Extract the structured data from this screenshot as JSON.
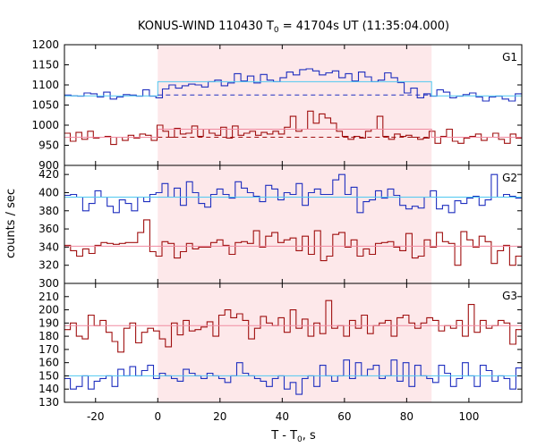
{
  "chart_data": {
    "type": "line",
    "title": "KONUS-WIND 110430 T",
    "title_sub": "0",
    "title_rest": " = 41704s UT (11:35:04.000)",
    "xlabel": "T - T",
    "xlabel_sub": "0",
    "xlabel_rest": ", s",
    "ylabel": "counts / sec",
    "xlim": [
      -30,
      117
    ],
    "x_ticks": [
      -20,
      0,
      20,
      40,
      60,
      80,
      100
    ],
    "shaded_interval": [
      0,
      88
    ],
    "colors": {
      "blue": "#1f2fbf",
      "red": "#a01010",
      "light_blue": "#4fc8f0",
      "pink": "#f08aa0",
      "shade": "#fde8ea"
    },
    "panels": [
      {
        "label": "G1",
        "ylim": [
          900,
          1200
        ],
        "y_ticks": [
          900,
          950,
          1000,
          1050,
          1100,
          1150,
          1200
        ],
        "series": [
          {
            "color": "blue",
            "values": [
              1075,
              1073,
              1072,
              1080,
              1078,
              1070,
              1082,
              1065,
              1070,
              1076,
              1075,
              1072,
              1088,
              1072,
              1068,
              1090,
              1100,
              1092,
              1098,
              1102,
              1100,
              1095,
              1108,
              1112,
              1098,
              1105,
              1128,
              1110,
              1122,
              1105,
              1126,
              1112,
              1108,
              1118,
              1132,
              1125,
              1138,
              1140,
              1135,
              1125,
              1130,
              1135,
              1118,
              1128,
              1110,
              1132,
              1120,
              1108,
              1112,
              1130,
              1118,
              1106,
              1080,
              1092,
              1068,
              1078,
              1072,
              1088,
              1082,
              1068,
              1072,
              1076,
              1080,
              1070,
              1060,
              1070,
              1072,
              1065,
              1060,
              1078
            ]
          },
          {
            "color": "red",
            "values": [
              980,
              960,
              982,
              965,
              985,
              968,
              970,
              972,
              952,
              970,
              962,
              975,
              968,
              978,
              975,
              962,
              1000,
              985,
              970,
              992,
              978,
              980,
              998,
              972,
              990,
              980,
              975,
              995,
              968,
              998,
              975,
              980,
              985,
              975,
              982,
              978,
              985,
              978,
              995,
              1022,
              985,
              990,
              1035,
              1005,
              1028,
              1018,
              1005,
              985,
              972,
              965,
              972,
              968,
              985,
              990,
              1022,
              972,
              965,
              978,
              972,
              975,
              970,
              965,
              968,
              985,
              955,
              972,
              990,
              960,
              955,
              968,
              972,
              978,
              962,
              970,
              980,
              965,
              955,
              978,
              968
            ]
          },
          {
            "color": "light_blue",
            "kind": "step-fit",
            "segments": [
              {
                "x0": -30,
                "x1": 0,
                "y": 1073
              },
              {
                "x0": 0,
                "x1": 88,
                "y": 1108
              },
              {
                "x0": 88,
                "x1": 117,
                "y": 1073
              }
            ]
          },
          {
            "color": "blue",
            "kind": "dashed",
            "segments": [
              {
                "x0": 0,
                "x1": 88,
                "y": 1075
              }
            ]
          },
          {
            "color": "pink",
            "kind": "step-fit",
            "segments": [
              {
                "x0": -30,
                "x1": 0,
                "y": 970
              },
              {
                "x0": 0,
                "x1": 88,
                "y": 990
              },
              {
                "x0": 88,
                "x1": 117,
                "y": 970
              }
            ]
          },
          {
            "color": "red",
            "kind": "dashed",
            "segments": [
              {
                "x0": 0,
                "x1": 88,
                "y": 970
              }
            ]
          }
        ]
      },
      {
        "label": "G2",
        "ylim": [
          300,
          430
        ],
        "y_ticks": [
          300,
          320,
          340,
          360,
          380,
          400,
          420
        ],
        "series": [
          {
            "color": "blue",
            "values": [
              397,
              398,
              395,
              380,
              388,
              402,
              395,
              385,
              378,
              392,
              388,
              380,
              395,
              390,
              398,
              400,
              410,
              395,
              405,
              386,
              412,
              400,
              388,
              384,
              398,
              404,
              398,
              394,
              412,
              405,
              400,
              396,
              390,
              408,
              404,
              392,
              400,
              398,
              410,
              386,
              400,
              404,
              398,
              398,
              414,
              420,
              398,
              406,
              378,
              390,
              392,
              402,
              394,
              404,
              397,
              386,
              382,
              385,
              383,
              395,
              402,
              382,
              386,
              378,
              391,
              388,
              394,
              396,
              386,
              392,
              420,
              395,
              398,
              396,
              394
            ]
          },
          {
            "color": "red",
            "values": [
              342,
              336,
              330,
              338,
              333,
              342,
              345,
              344,
              343,
              344,
              345,
              345,
              356,
              370,
              335,
              330,
              346,
              344,
              328,
              335,
              344,
              338,
              340,
              340,
              345,
              348,
              342,
              332,
              345,
              346,
              344,
              358,
              340,
              352,
              356,
              345,
              348,
              350,
              336,
              352,
              332,
              358,
              325,
              330,
              354,
              356,
              340,
              348,
              330,
              338,
              332,
              344,
              345,
              346,
              340,
              336,
              355,
              328,
              330,
              348,
              340,
              356,
              346,
              344,
              320,
              357,
              348,
              340,
              352,
              346,
              322,
              336,
              342,
              320,
              330
            ]
          },
          {
            "color": "light_blue",
            "kind": "flat-fit",
            "segments": [
              {
                "x0": -30,
                "x1": 117,
                "y": 395
              }
            ]
          },
          {
            "color": "pink",
            "kind": "flat-fit",
            "segments": [
              {
                "x0": -30,
                "x1": 117,
                "y": 341
              }
            ]
          }
        ]
      },
      {
        "label": "G3",
        "ylim": [
          130,
          220
        ],
        "y_ticks": [
          130,
          140,
          150,
          160,
          170,
          180,
          190,
          200,
          210
        ],
        "series": [
          {
            "color": "red",
            "values": [
              185,
              190,
              180,
              178,
              196,
              188,
              192,
              183,
              176,
              168,
              186,
              190,
              175,
              183,
              186,
              184,
              178,
              172,
              190,
              181,
              192,
              184,
              185,
              187,
              191,
              180,
              196,
              200,
              194,
              197,
              192,
              178,
              186,
              195,
              190,
              188,
              194,
              183,
              200,
              186,
              193,
              180,
              190,
              182,
              207,
              186,
              188,
              180,
              192,
              186,
              196,
              182,
              188,
              190,
              192,
              180,
              194,
              196,
              190,
              186,
              190,
              194,
              192,
              184,
              188,
              186,
              192,
              180,
              204,
              183,
              192,
              186,
              188,
              192,
              190,
              174,
              185
            ]
          },
          {
            "color": "blue",
            "values": [
              148,
              140,
              142,
              150,
              140,
              146,
              148,
              150,
              142,
              155,
              150,
              157,
              150,
              154,
              158,
              148,
              152,
              150,
              148,
              146,
              155,
              152,
              150,
              148,
              152,
              150,
              148,
              145,
              150,
              160,
              152,
              150,
              148,
              146,
              142,
              148,
              150,
              140,
              145,
              136,
              148,
              150,
              142,
              158,
              150,
              146,
              150,
              162,
              148,
              160,
              150,
              155,
              158,
              148,
              150,
              162,
              146,
              160,
              142,
              158,
              150,
              148,
              145,
              158,
              152,
              142,
              148,
              160,
              150,
              142,
              158,
              154,
              146,
              150,
              148,
              140,
              156
            ]
          },
          {
            "color": "light_blue",
            "kind": "flat-fit",
            "segments": [
              {
                "x0": -30,
                "x1": 117,
                "y": 150
              }
            ]
          },
          {
            "color": "pink",
            "kind": "flat-fit",
            "segments": [
              {
                "x0": -30,
                "x1": 117,
                "y": 188
              }
            ]
          }
        ]
      }
    ]
  }
}
